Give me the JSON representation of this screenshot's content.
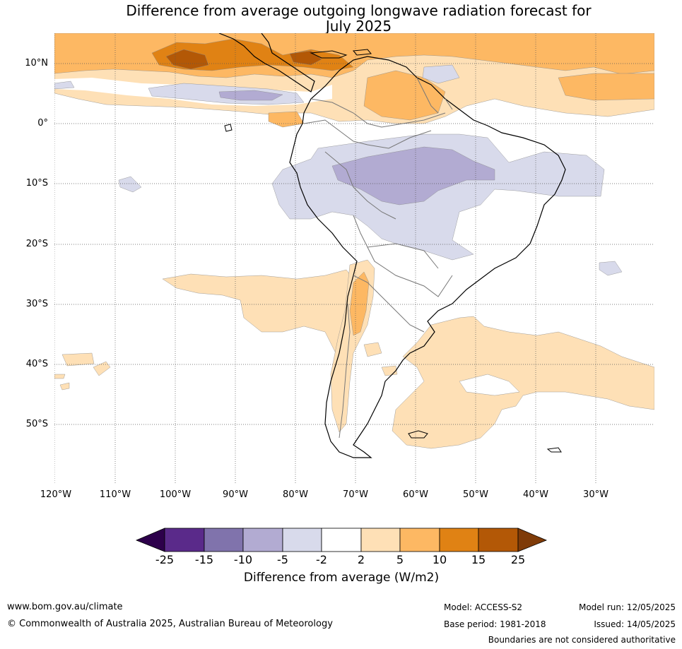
{
  "title_line1": "Difference from average outgoing longwave radiation forecast for",
  "title_line2": "July 2025",
  "lat_labels": [
    "10°N",
    "0°",
    "10°S",
    "20°S",
    "30°S",
    "40°S",
    "50°S"
  ],
  "lon_labels": [
    "120°W",
    "110°W",
    "100°W",
    "90°W",
    "80°W",
    "70°W",
    "60°W",
    "50°W",
    "40°W",
    "30°W"
  ],
  "colorbar": {
    "ticks": [
      "-25",
      "-15",
      "-10",
      "-5",
      "-2",
      "2",
      "5",
      "10",
      "15",
      "25"
    ],
    "colors": [
      "#2d004b",
      "#5a2a8a",
      "#8073ac",
      "#b2abd2",
      "#d8daeb",
      "#ffffff",
      "#fee0b6",
      "#fdb863",
      "#e08214",
      "#b35806",
      "#7f3b08"
    ],
    "label": "Difference from average (W/m2)"
  },
  "footer": {
    "url": "www.bom.gov.au/climate",
    "copyright": "© Commonwealth of Australia 2025, Australian Bureau of Meteorology",
    "model": "Model: ACCESS-S2",
    "base_period": "Base period: 1981-2018",
    "model_run": "Model run: 12/05/2025",
    "issued": "Issued: 14/05/2025",
    "disclaimer": "Boundaries are not considered authoritative"
  }
}
